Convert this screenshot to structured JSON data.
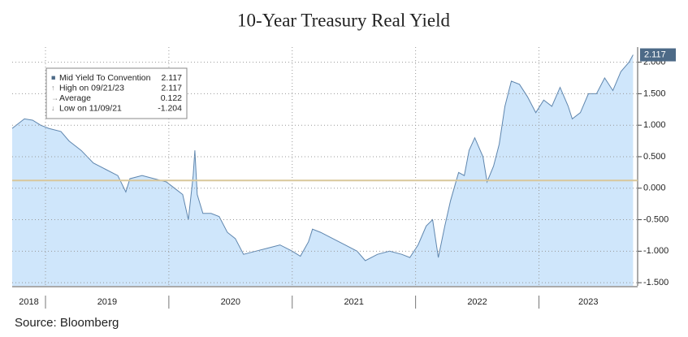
{
  "chart_data": {
    "type": "area",
    "title": "10-Year Treasury Real Yield",
    "source": "Source: Bloomberg",
    "series": [
      {
        "name": "Mid Yield To Convention",
        "color": "#5f86ae",
        "fill": "#cfe6fb",
        "x": [
          2018.73,
          2018.829,
          2018.895,
          2018.961,
          2019.026,
          2019.125,
          2019.191,
          2019.289,
          2019.388,
          2019.487,
          2019.586,
          2019.651,
          2019.684,
          2019.783,
          2019.882,
          2019.98,
          2020.046,
          2020.112,
          2020.158,
          2020.197,
          2020.211,
          2020.23,
          2020.276,
          2020.342,
          2020.408,
          2020.474,
          2020.539,
          2020.605,
          2020.704,
          2020.803,
          2020.901,
          2021.0,
          2021.066,
          2021.132,
          2021.164,
          2021.23,
          2021.329,
          2021.428,
          2021.526,
          2021.592,
          2021.691,
          2021.789,
          2021.888,
          2021.954,
          2022.02,
          2022.086,
          2022.138,
          2022.184,
          2022.237,
          2022.283,
          2022.349,
          2022.395,
          2022.434,
          2022.48,
          2022.546,
          2022.579,
          2022.632,
          2022.678,
          2022.724,
          2022.776,
          2022.842,
          2022.908,
          2022.974,
          2023.039,
          2023.105,
          2023.171,
          2023.237,
          2023.27,
          2023.336,
          2023.401,
          2023.467,
          2023.533,
          2023.599,
          2023.664,
          2023.73,
          2023.763
        ],
        "values": [
          0.95,
          1.1,
          1.08,
          1.0,
          0.95,
          0.9,
          0.75,
          0.6,
          0.4,
          0.3,
          0.2,
          -0.06,
          0.15,
          0.2,
          0.15,
          0.1,
          0.0,
          -0.1,
          -0.5,
          0.2,
          0.6,
          -0.1,
          -0.4,
          -0.4,
          -0.45,
          -0.7,
          -0.8,
          -1.05,
          -1.0,
          -0.95,
          -0.9,
          -1.0,
          -1.08,
          -0.85,
          -0.65,
          -0.7,
          -0.8,
          -0.9,
          -1.0,
          -1.15,
          -1.05,
          -1.0,
          -1.05,
          -1.1,
          -0.9,
          -0.6,
          -0.5,
          -1.1,
          -0.6,
          -0.2,
          0.25,
          0.2,
          0.6,
          0.8,
          0.5,
          0.1,
          0.35,
          0.7,
          1.3,
          1.7,
          1.65,
          1.45,
          1.2,
          1.4,
          1.3,
          1.6,
          1.3,
          1.1,
          1.2,
          1.5,
          1.5,
          1.75,
          1.55,
          1.85,
          2.0,
          2.117
        ]
      }
    ],
    "last_value": 2.117,
    "average": 0.122,
    "average_color": "#d9c79a",
    "legend": [
      {
        "label": "Mid Yield To Convention",
        "value": 2.117
      },
      {
        "label": "High on 09/21/23",
        "value": 2.117
      },
      {
        "label": "Average",
        "value": 0.122
      },
      {
        "label": "Low on 11/09/21",
        "value": -1.204
      }
    ],
    "xlim": [
      2018.73,
      2023.8
    ],
    "xticks": [
      2019,
      2020,
      2021,
      2022,
      2023
    ],
    "year_labels": [
      {
        "value": 2018,
        "label": "2018"
      },
      {
        "value": 2019,
        "label": "2019"
      },
      {
        "value": 2020,
        "label": "2020"
      },
      {
        "value": 2021,
        "label": "2021"
      },
      {
        "value": 2022,
        "label": "2022"
      },
      {
        "value": 2023,
        "label": "2023"
      }
    ],
    "ylim": [
      -1.55,
      2.24
    ],
    "yticks": [
      {
        "value": 2,
        "label": "2.000"
      },
      {
        "value": 1.5,
        "label": "1.500"
      },
      {
        "value": 1,
        "label": "1.000"
      },
      {
        "value": 0.5,
        "label": "0.500"
      },
      {
        "value": 0,
        "label": "0.000"
      },
      {
        "value": -0.5,
        "label": "-0.500"
      },
      {
        "value": -1,
        "label": "-1.000"
      },
      {
        "value": -1.5,
        "label": "-1.500"
      }
    ],
    "grid": true
  }
}
